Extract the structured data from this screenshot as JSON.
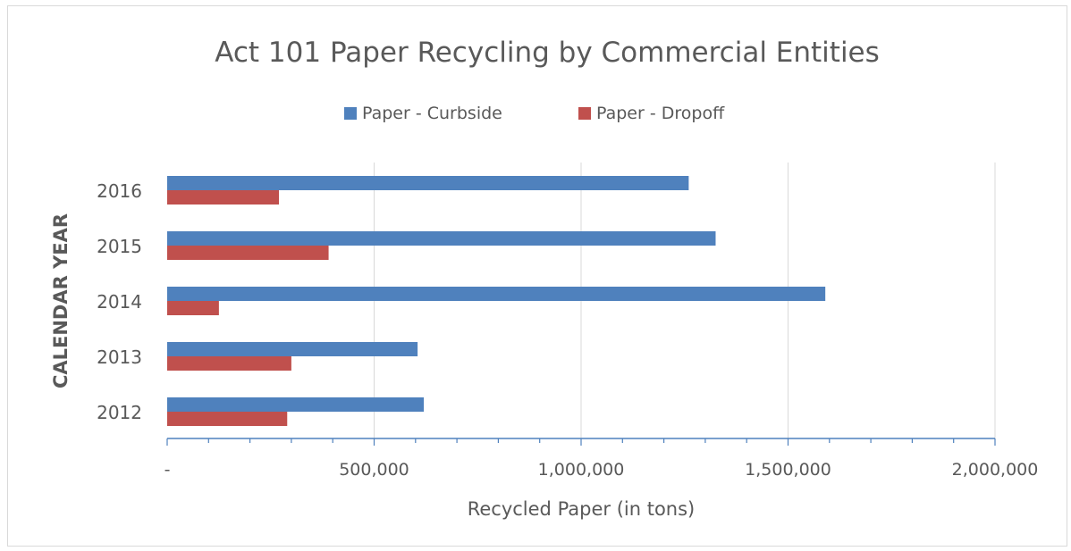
{
  "chart_data": {
    "type": "bar",
    "orientation": "horizontal",
    "title": "Act 101 Paper Recycling by Commercial Entities",
    "xlabel": "Recycled Paper (in tons)",
    "ylabel": "CALENDAR YEAR",
    "categories": [
      "2016",
      "2015",
      "2014",
      "2013",
      "2012"
    ],
    "series": [
      {
        "name": "Paper - Curbside",
        "color": "#4f81bd",
        "values": [
          1260000,
          1325000,
          1590000,
          605000,
          620000
        ]
      },
      {
        "name": "Paper - Dropoff",
        "color": "#c0504d",
        "values": [
          270000,
          390000,
          125000,
          300000,
          290000
        ]
      }
    ],
    "xlim": [
      0,
      2000000
    ],
    "x_ticks": [
      0,
      500000,
      1000000,
      1500000,
      2000000
    ],
    "x_tick_labels": [
      "-",
      "500,000",
      "1,000,000",
      "1,500,000",
      "2,000,000"
    ],
    "x_minor_step": 100000,
    "grid": "vertical",
    "legend_position": "top"
  }
}
